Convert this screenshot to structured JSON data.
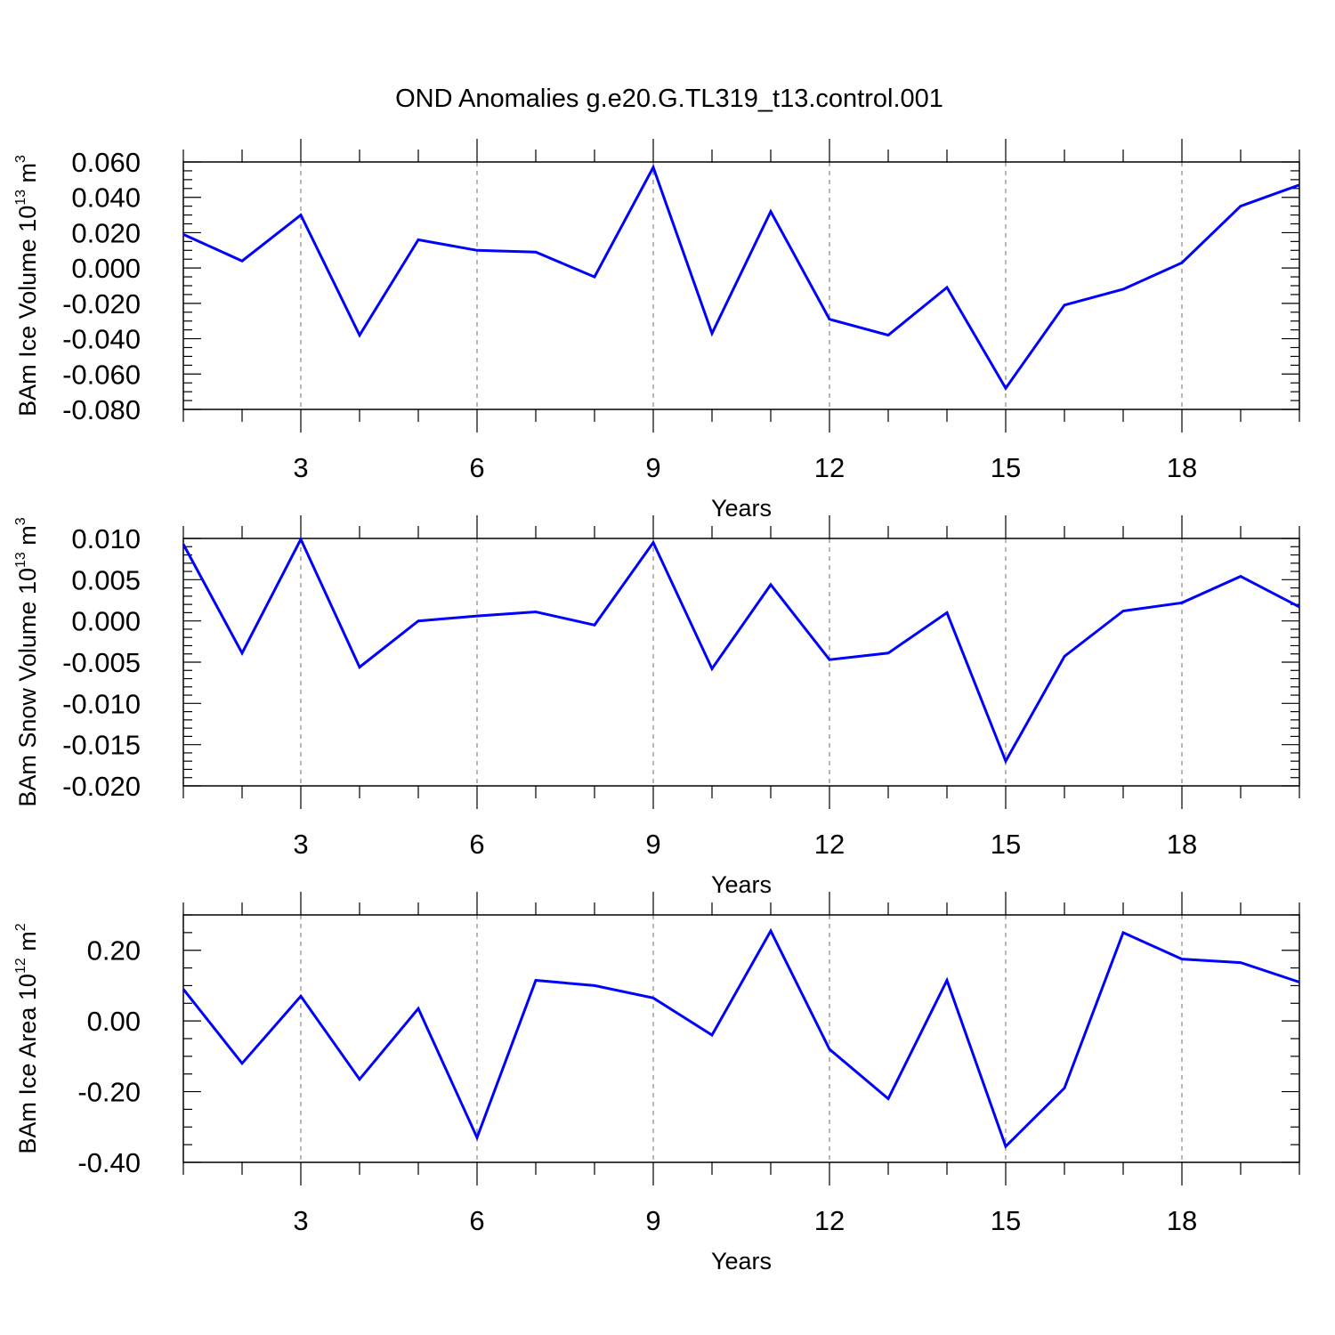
{
  "title": "OND Anomalies g.e20.G.TL319_t13.control.001",
  "colors": {
    "line": "#0000ff",
    "grid": "#888888",
    "axes": "#000000"
  },
  "chart_data": [
    {
      "type": "line",
      "ylabel": {
        "prefix": "BAm Ice Volume 10",
        "exp": "13",
        "unit": " m",
        "unit_exp": "3"
      },
      "xlabel": "Years",
      "x": [
        1,
        2,
        3,
        4,
        5,
        6,
        7,
        8,
        9,
        10,
        11,
        12,
        13,
        14,
        15,
        16,
        17,
        18,
        19,
        20
      ],
      "values": [
        0.019,
        0.004,
        0.03,
        -0.038,
        0.016,
        0.01,
        0.009,
        -0.005,
        0.057,
        -0.037,
        0.032,
        -0.029,
        -0.038,
        -0.011,
        -0.068,
        -0.021,
        -0.012,
        0.003,
        0.035,
        0.047
      ],
      "xlim": [
        1,
        20
      ],
      "ylim": [
        -0.08,
        0.06
      ],
      "yticks": [
        0.06,
        0.04,
        0.02,
        0.0,
        -0.02,
        -0.04,
        -0.06,
        -0.08
      ],
      "ytick_labels": [
        "0.060",
        "0.040",
        "0.020",
        "0.000",
        "-0.020",
        "-0.040",
        "-0.060",
        "-0.080"
      ],
      "yminor_step": 0.005,
      "xticks": [
        3,
        6,
        9,
        12,
        15,
        18
      ],
      "xtick_labels": [
        "3",
        "6",
        "9",
        "12",
        "15",
        "18"
      ],
      "grid": "vertical dashed at major x ticks"
    },
    {
      "type": "line",
      "ylabel": {
        "prefix": "BAm Snow Volume 10",
        "exp": "13",
        "unit": " m",
        "unit_exp": "3"
      },
      "xlabel": "Years",
      "x": [
        1,
        2,
        3,
        4,
        5,
        6,
        7,
        8,
        9,
        10,
        11,
        12,
        13,
        14,
        15,
        16,
        17,
        18,
        19,
        20
      ],
      "values": [
        0.0093,
        -0.0039,
        0.0099,
        -0.0056,
        0.0,
        0.0006,
        0.0011,
        -0.0005,
        0.0095,
        -0.0058,
        0.0044,
        -0.0047,
        -0.0039,
        0.001,
        -0.017,
        -0.0043,
        0.0012,
        0.0022,
        0.0054,
        0.0017
      ],
      "xlim": [
        1,
        20
      ],
      "ylim": [
        -0.02,
        0.01
      ],
      "yticks": [
        0.01,
        0.005,
        0.0,
        -0.005,
        -0.01,
        -0.015,
        -0.02
      ],
      "ytick_labels": [
        "0.010",
        "0.005",
        "0.000",
        "-0.005",
        "-0.010",
        "-0.015",
        "-0.020"
      ],
      "yminor_step": 0.001,
      "xticks": [
        3,
        6,
        9,
        12,
        15,
        18
      ],
      "xtick_labels": [
        "3",
        "6",
        "9",
        "12",
        "15",
        "18"
      ],
      "grid": "vertical dashed at major x ticks"
    },
    {
      "type": "line",
      "ylabel": {
        "prefix": "BAm Ice Area 10",
        "exp": "12",
        "unit": " m",
        "unit_exp": "2"
      },
      "xlabel": "Years",
      "x": [
        1,
        2,
        3,
        4,
        5,
        6,
        7,
        8,
        9,
        10,
        11,
        12,
        13,
        14,
        15,
        16,
        17,
        18,
        19,
        20
      ],
      "values": [
        0.09,
        -0.12,
        0.07,
        -0.165,
        0.035,
        -0.33,
        0.115,
        0.1,
        0.065,
        -0.04,
        0.255,
        -0.08,
        -0.22,
        0.115,
        -0.355,
        -0.19,
        0.25,
        0.175,
        0.165,
        0.11
      ],
      "xlim": [
        1,
        20
      ],
      "ylim": [
        -0.4,
        0.3
      ],
      "yticks": [
        0.2,
        0.0,
        -0.2,
        -0.4
      ],
      "ytick_labels": [
        "0.20",
        "0.00",
        "-0.20",
        "-0.40"
      ],
      "yminor_step": 0.05,
      "xticks": [
        3,
        6,
        9,
        12,
        15,
        18
      ],
      "xtick_labels": [
        "3",
        "6",
        "9",
        "12",
        "15",
        "18"
      ],
      "grid": "vertical dashed at major x ticks"
    }
  ]
}
